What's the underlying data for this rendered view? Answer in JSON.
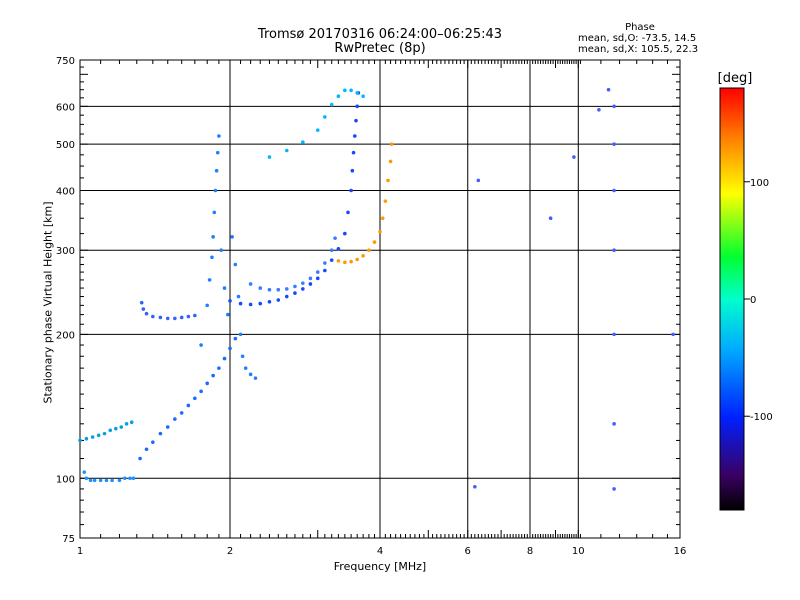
{
  "header": {
    "title_line1": "Tromsø 20170316 06:24:00–06:25:43",
    "title_line2": "RwPretec (8p)"
  },
  "phase_info": {
    "title": "Phase",
    "mean_sd_o": "mean, sd,O: -73.5, 14.5",
    "mean_sd_x": "mean, sd,X: 105.5, 22.3"
  },
  "colorbar": {
    "label": "[deg]",
    "range": [
      -180,
      180
    ],
    "ticks": [
      100,
      0,
      -100
    ],
    "tick_labels": [
      "100",
      "0",
      "-100"
    ]
  },
  "chart_data": {
    "type": "scatter",
    "title": "Tromsø 20170316 06:24:00–06:25:43",
    "subtitle": "RwPretec (8p)",
    "xlabel": "Frequency [MHz]",
    "ylabel": "Stationary phase Virtual Height [km]",
    "xscale": "log",
    "yscale": "log",
    "xlim": [
      1,
      16
    ],
    "ylim": [
      75,
      750
    ],
    "xticks": [
      1,
      2,
      4,
      6,
      8,
      10,
      16
    ],
    "xtick_labels": [
      "1",
      "2",
      "4",
      "6",
      "8",
      "10",
      "16"
    ],
    "yticks": [
      75,
      100,
      200,
      300,
      400,
      500,
      600,
      750
    ],
    "ytick_labels": [
      "75",
      "100",
      "200",
      "300",
      "400",
      "500",
      "600",
      "750"
    ],
    "major_grid_x": [
      2,
      4,
      6,
      8,
      10
    ],
    "major_grid_y": [
      100,
      200,
      300,
      400,
      500,
      600
    ],
    "grid": true,
    "color_scale": "phase [deg], -180 black → blue → cyan → green → yellow → red 180",
    "series": [
      {
        "points": [
          [
            1.02,
            103
          ],
          [
            1.03,
            100
          ],
          [
            1.05,
            99
          ],
          [
            1.07,
            99
          ],
          [
            1.1,
            99
          ],
          [
            1.13,
            99
          ],
          [
            1.16,
            99
          ],
          [
            1.2,
            99
          ],
          [
            1.23,
            100
          ],
          [
            1.26,
            100
          ],
          [
            1.28,
            100
          ]
        ]
      },
      {
        "points": [
          [
            1.0,
            120
          ],
          [
            1.03,
            121
          ],
          [
            1.06,
            122
          ],
          [
            1.09,
            123
          ],
          [
            1.12,
            124
          ],
          [
            1.15,
            126
          ],
          [
            1.18,
            127
          ],
          [
            1.21,
            128
          ],
          [
            1.24,
            130
          ],
          [
            1.27,
            131
          ]
        ]
      },
      {
        "points": [
          [
            1.32,
            110
          ],
          [
            1.36,
            115
          ],
          [
            1.4,
            119
          ],
          [
            1.45,
            124
          ],
          [
            1.5,
            128
          ],
          [
            1.55,
            133
          ],
          [
            1.6,
            137
          ],
          [
            1.65,
            142
          ],
          [
            1.7,
            147
          ],
          [
            1.75,
            152
          ],
          [
            1.8,
            158
          ],
          [
            1.85,
            164
          ],
          [
            1.9,
            170
          ],
          [
            1.95,
            178
          ],
          [
            2.0,
            187
          ],
          [
            2.05,
            196
          ]
        ]
      },
      {
        "points": [
          [
            1.33,
            233
          ],
          [
            1.34,
            226
          ],
          [
            1.36,
            221
          ],
          [
            1.4,
            218
          ],
          [
            1.45,
            217
          ],
          [
            1.5,
            216
          ],
          [
            1.55,
            216
          ],
          [
            1.6,
            217
          ],
          [
            1.65,
            218
          ],
          [
            1.7,
            219
          ]
        ]
      },
      {
        "points": [
          [
            1.75,
            190
          ],
          [
            1.8,
            230
          ],
          [
            1.82,
            260
          ],
          [
            1.84,
            290
          ],
          [
            1.85,
            320
          ],
          [
            1.86,
            360
          ],
          [
            1.87,
            400
          ],
          [
            1.88,
            440
          ],
          [
            1.89,
            480
          ],
          [
            1.9,
            520
          ],
          [
            1.92,
            300
          ],
          [
            1.95,
            250
          ],
          [
            1.98,
            220
          ],
          [
            2.02,
            320
          ],
          [
            2.05,
            280
          ],
          [
            2.08,
            240
          ],
          [
            2.1,
            200
          ],
          [
            2.12,
            180
          ],
          [
            2.15,
            170
          ],
          [
            2.2,
            165
          ],
          [
            2.25,
            162
          ]
        ]
      },
      {
        "points": [
          [
            2.0,
            235
          ],
          [
            2.1,
            232
          ],
          [
            2.2,
            231
          ],
          [
            2.3,
            232
          ],
          [
            2.4,
            234
          ],
          [
            2.5,
            236
          ],
          [
            2.6,
            240
          ],
          [
            2.7,
            244
          ],
          [
            2.8,
            249
          ],
          [
            2.9,
            255
          ],
          [
            3.0,
            262
          ],
          [
            3.1,
            272
          ],
          [
            3.2,
            286
          ],
          [
            3.3,
            302
          ],
          [
            3.4,
            325
          ],
          [
            3.45,
            360
          ],
          [
            3.5,
            400
          ],
          [
            3.52,
            440
          ],
          [
            3.54,
            480
          ],
          [
            3.56,
            520
          ],
          [
            3.58,
            560
          ],
          [
            3.6,
            600
          ],
          [
            3.62,
            640
          ]
        ]
      },
      {
        "points": [
          [
            2.2,
            255
          ],
          [
            2.3,
            250
          ],
          [
            2.4,
            248
          ],
          [
            2.5,
            248
          ],
          [
            2.6,
            249
          ],
          [
            2.7,
            252
          ],
          [
            2.8,
            256
          ],
          [
            2.9,
            262
          ],
          [
            3.0,
            270
          ],
          [
            3.1,
            282
          ],
          [
            3.2,
            300
          ],
          [
            3.25,
            318
          ]
        ]
      },
      {
        "points": [
          [
            2.4,
            470
          ],
          [
            2.6,
            485
          ],
          [
            2.8,
            505
          ],
          [
            3.0,
            535
          ],
          [
            3.1,
            570
          ],
          [
            3.2,
            605
          ],
          [
            3.3,
            630
          ],
          [
            3.4,
            648
          ],
          [
            3.5,
            648
          ],
          [
            3.6,
            640
          ],
          [
            3.7,
            630
          ]
        ]
      },
      {
        "points": [
          [
            3.3,
            285
          ],
          [
            3.4,
            283
          ],
          [
            3.5,
            284
          ],
          [
            3.6,
            287
          ],
          [
            3.7,
            292
          ],
          [
            3.8,
            300
          ],
          [
            3.9,
            312
          ],
          [
            4.0,
            328
          ],
          [
            4.05,
            350
          ],
          [
            4.1,
            380
          ],
          [
            4.15,
            420
          ],
          [
            4.2,
            460
          ],
          [
            4.22,
            500
          ]
        ]
      },
      {
        "points": [
          [
            6.2,
            96
          ],
          [
            6.3,
            420
          ],
          [
            8.8,
            350
          ],
          [
            9.8,
            470
          ],
          [
            11.0,
            590
          ],
          [
            11.5,
            650
          ],
          [
            11.8,
            600
          ],
          [
            11.8,
            500
          ],
          [
            11.8,
            400
          ],
          [
            11.8,
            300
          ],
          [
            11.8,
            200
          ],
          [
            11.8,
            130
          ],
          [
            11.8,
            95
          ],
          [
            15.5,
            200
          ]
        ]
      }
    ]
  }
}
